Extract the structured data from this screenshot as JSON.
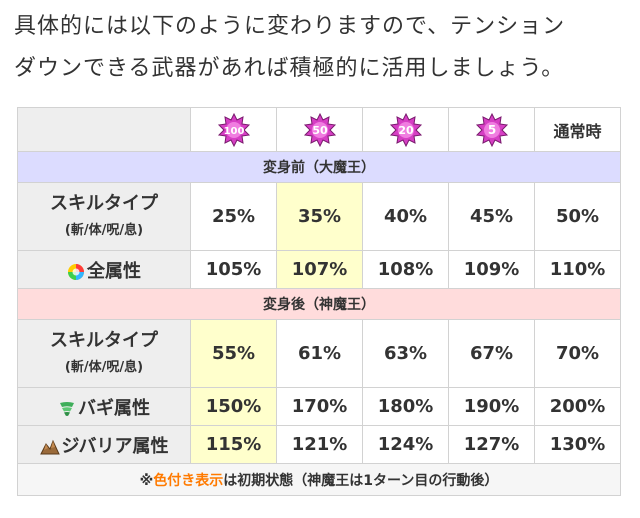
{
  "intro": {
    "line1": "具体的には以下のように変わりますので、テンション",
    "line2": "ダウンできる武器があれば積極的に活用しましょう。"
  },
  "table": {
    "headers": [
      "100",
      "50",
      "20",
      "5",
      "通常時"
    ],
    "section_before": "変身前（大魔王）",
    "section_after": "変身後（神魔王）",
    "skill_label_main": "スキルタイプ",
    "skill_label_sub": "(斬/体/呪/息)",
    "all_attr_label": "全属性",
    "bagi_label": "バギ属性",
    "jibaria_label": "ジバリア属性",
    "before_skill": [
      "25%",
      "35%",
      "40%",
      "45%",
      "50%"
    ],
    "before_all": [
      "105%",
      "107%",
      "108%",
      "109%",
      "110%"
    ],
    "after_skill": [
      "55%",
      "61%",
      "63%",
      "67%",
      "70%"
    ],
    "after_bagi": [
      "150%",
      "170%",
      "180%",
      "190%",
      "200%"
    ],
    "after_jibaria": [
      "115%",
      "121%",
      "124%",
      "127%",
      "130%"
    ],
    "highlight_col_before": 1,
    "highlight_col_after": 0,
    "note_prefix": "※",
    "note_em": "色付き表示",
    "note_rest": "は初期状態（神魔王は1ターン目の行動後）"
  },
  "colors": {
    "highlight": "#ffffcc",
    "section_before": "#dcdcff",
    "section_after": "#ffdcdc",
    "tension_badge": "#d63fc4",
    "note_em": "#ff7a00"
  },
  "icons": {
    "tension": "tension-burst-icon",
    "all_attr": "rainbow-orb-icon",
    "bagi": "whirlwind-icon",
    "jibaria": "rock-pile-icon"
  }
}
